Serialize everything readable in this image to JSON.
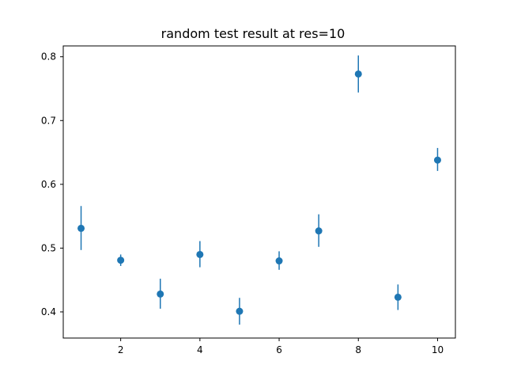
{
  "chart_data": {
    "type": "scatter",
    "title": "random test result at res=10",
    "xlabel": "",
    "ylabel": "",
    "xlim": [
      0.55,
      10.45
    ],
    "ylim": [
      0.359,
      0.817
    ],
    "grid": false,
    "legend": "none",
    "x_ticks": [
      2,
      4,
      6,
      8,
      10
    ],
    "x_tick_labels": [
      "2",
      "4",
      "6",
      "8",
      "10"
    ],
    "y_ticks": [
      0.4,
      0.5,
      0.6,
      0.7,
      0.8
    ],
    "y_tick_labels": [
      "0.4",
      "0.5",
      "0.6",
      "0.7",
      "0.8"
    ],
    "x": [
      1,
      2,
      3,
      4,
      5,
      6,
      7,
      8,
      9,
      10
    ],
    "values": [
      0.531,
      0.481,
      0.428,
      0.49,
      0.401,
      0.48,
      0.527,
      0.773,
      0.423,
      0.638
    ],
    "error_low": [
      0.497,
      0.472,
      0.405,
      0.47,
      0.38,
      0.466,
      0.502,
      0.744,
      0.403,
      0.621
    ],
    "error_high": [
      0.566,
      0.49,
      0.452,
      0.511,
      0.422,
      0.495,
      0.553,
      0.802,
      0.443,
      0.657
    ],
    "series_color": "#1f77b4",
    "axis_color": "#000000",
    "background_color": "#ffffff"
  }
}
